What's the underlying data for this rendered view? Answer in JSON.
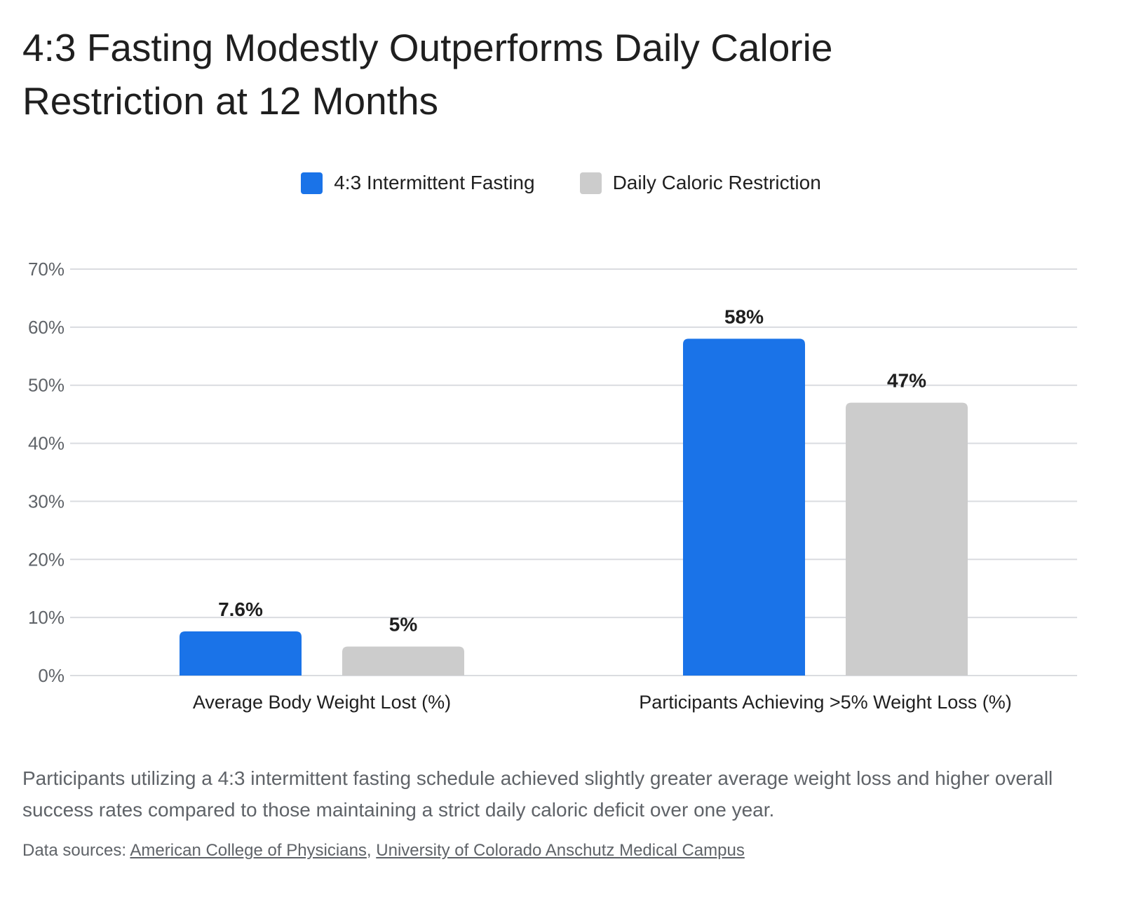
{
  "title": "4:3 Fasting Modestly Outperforms Daily Calorie Restriction at 12 Months",
  "description": "Participants utilizing a 4:3 intermittent fasting schedule achieved slightly greater average weight loss and higher overall success rates compared to those maintaining a strict daily caloric deficit over one year.",
  "sources": {
    "prefix": "Data sources: ",
    "separator": ", ",
    "links": [
      "American College of Physicians",
      "University of Colorado Anschutz Medical Campus"
    ]
  },
  "colors": {
    "fasting": "#1a73e8",
    "restriction": "#cccccc",
    "grid": "#dadce0",
    "tick_text": "#5f6368",
    "label_text": "#1f1f1f"
  },
  "chart_data": {
    "type": "bar",
    "categories": [
      "Average Body Weight Lost (%)",
      "Participants Achieving >5% Weight Loss (%)"
    ],
    "series": [
      {
        "name": "4:3 Intermittent Fasting",
        "values": [
          7.6,
          58
        ],
        "labels": [
          "7.6%",
          "58%"
        ],
        "color": "#1a73e8"
      },
      {
        "name": "Daily Caloric Restriction",
        "values": [
          5,
          47
        ],
        "labels": [
          "5%",
          "47%"
        ],
        "color": "#cccccc"
      }
    ],
    "ylim": [
      0,
      70
    ],
    "yticks": [
      0,
      10,
      20,
      30,
      40,
      50,
      60,
      70
    ],
    "ytick_labels": [
      "0%",
      "10%",
      "20%",
      "30%",
      "40%",
      "50%",
      "60%",
      "70%"
    ],
    "legend_position": "top-center",
    "grid": true
  }
}
